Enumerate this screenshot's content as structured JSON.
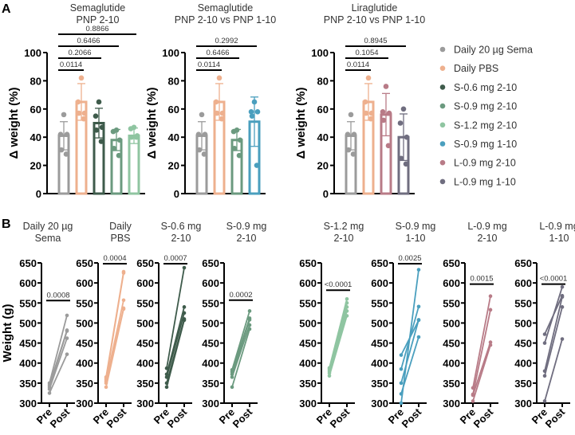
{
  "panel_labels": [
    "A",
    "B"
  ],
  "colors": {
    "Daily 20 µg Sema": "#9b9b9b",
    "Daily PBS": "#eeb08e",
    "S-0.6 mg 2-10": "#3e5b4b",
    "S-0.9 mg 2-10": "#6b9a7f",
    "S-1.2 mg 2-10": "#8fc5a1",
    "S-0.9 mg 1-10": "#4a9fbe",
    "L-0.9 mg 2-10": "#b87b87",
    "L-0.9 mg 1-10": "#6f6d7f"
  },
  "legend": [
    "Daily 20 µg Sema",
    "Daily PBS",
    "S-0.6 mg 2-10",
    "S-0.9 mg 2-10",
    "S-1.2 mg 2-10",
    "S-0.9 mg 1-10",
    "L-0.9 mg 2-10",
    "L-0.9 mg 1-10"
  ],
  "chart_data": [
    {
      "type": "bar",
      "panel": "A",
      "title": [
        "Semaglutide",
        "PNP 2-10"
      ],
      "ylabel": "Δ weight (%)",
      "ylim": [
        0,
        100
      ],
      "yticks": [
        0,
        20,
        40,
        60,
        80,
        100
      ],
      "groups": [
        {
          "name": "Daily 20 µg Sema",
          "mean": 41,
          "sd": 10,
          "points": [
            56,
            42,
            42,
            31,
            28
          ]
        },
        {
          "name": "Daily PBS",
          "mean": 65,
          "sd": 13,
          "points": [
            82,
            65,
            57,
            57,
            53
          ]
        },
        {
          "name": "S-0.6 mg 2-10",
          "mean": 50,
          "sd": 10.5,
          "points": [
            65,
            55,
            47,
            45,
            37
          ]
        },
        {
          "name": "S-0.9 mg 2-10",
          "mean": 38,
          "sd": 7.5,
          "points": [
            45,
            44,
            38,
            32,
            27
          ]
        },
        {
          "name": "S-1.2 mg 2-10",
          "mean": 41,
          "sd": 5.5,
          "points": [
            47,
            46,
            41,
            40,
            40
          ]
        }
      ],
      "comparisons": [
        {
          "to": 1,
          "p": "0.0114"
        },
        {
          "to": 2,
          "p": "0.2066"
        },
        {
          "to": 3,
          "p": "0.6466"
        },
        {
          "to": 4,
          "p": "0.8866"
        }
      ]
    },
    {
      "type": "bar",
      "panel": "A",
      "title": [
        "Semaglutide",
        "PNP 2-10 vs PNP 1-10"
      ],
      "ylabel": "Δ weight (%)",
      "ylim": [
        0,
        100
      ],
      "yticks": [
        0,
        20,
        40,
        60,
        80,
        100
      ],
      "groups": [
        {
          "name": "Daily 20 µg Sema",
          "mean": 41,
          "sd": 10,
          "points": [
            56,
            42,
            42,
            31,
            28
          ]
        },
        {
          "name": "Daily PBS",
          "mean": 65,
          "sd": 13,
          "points": [
            82,
            65,
            57,
            57,
            53
          ]
        },
        {
          "name": "S-0.9 mg 2-10",
          "mean": 38,
          "sd": 7.5,
          "points": [
            45,
            44,
            38,
            32,
            27
          ]
        },
        {
          "name": "S-0.9 mg 1-10",
          "mean": 51,
          "sd": 17.5,
          "points": [
            65,
            58,
            58,
            55,
            20
          ]
        }
      ],
      "comparisons": [
        {
          "to": 1,
          "p": "0.0114"
        },
        {
          "to": 2,
          "p": "0.6466"
        },
        {
          "to": 3,
          "p": "0.2992"
        }
      ]
    },
    {
      "type": "bar",
      "panel": "A",
      "title": [
        "Liraglutide",
        "PNP 2-10 vs PNP 1-10"
      ],
      "ylabel": "Δ weight (%)",
      "ylim": [
        0,
        100
      ],
      "yticks": [
        0,
        20,
        40,
        60,
        80,
        100
      ],
      "groups": [
        {
          "name": "Daily 20 µg Sema",
          "mean": 41,
          "sd": 10,
          "points": [
            56,
            42,
            42,
            31,
            28
          ]
        },
        {
          "name": "Daily PBS",
          "mean": 65,
          "sd": 13,
          "points": [
            82,
            65,
            57,
            57,
            53
          ]
        },
        {
          "name": "L-0.9 mg 2-10",
          "mean": 56,
          "sd": 15,
          "points": [
            76,
            58,
            57,
            52,
            34
          ]
        },
        {
          "name": "L-0.9 mg 1-10",
          "mean": 40,
          "sd": 16.5,
          "points": [
            60,
            50,
            40,
            25,
            21
          ]
        }
      ],
      "comparisons": [
        {
          "to": 1,
          "p": "0.0114"
        },
        {
          "to": 2,
          "p": "0.1054"
        },
        {
          "to": 3,
          "p": "0.8945"
        }
      ]
    },
    {
      "type": "line",
      "panel": "B",
      "ylabel": "Weight (g)",
      "ylim": [
        300,
        650
      ],
      "yticks": [
        300,
        350,
        400,
        450,
        500,
        550,
        600,
        650
      ],
      "xticks": [
        "Pre",
        "Post"
      ],
      "subplots": [
        {
          "title": [
            "Daily 20 µg",
            "Sema"
          ],
          "group": "Daily 20 µg Sema",
          "p": "0.0008",
          "p_level": 556,
          "pairs": [
            [
              350,
              519
            ],
            [
              345,
              482
            ],
            [
              340,
              480
            ],
            [
              335,
              462
            ],
            [
              325,
              422
            ]
          ]
        },
        {
          "title": [
            "Daily",
            "PBS"
          ],
          "group": "Daily PBS",
          "p": "0.0004",
          "p_level": 648,
          "pairs": [
            [
              365,
              628
            ],
            [
              360,
              625
            ],
            [
              355,
              557
            ],
            [
              350,
              537
            ],
            [
              340,
              535
            ]
          ]
        },
        {
          "title": [
            "S-0.6 mg",
            "2-10"
          ],
          "group": "S-0.6 mg 2-10",
          "p": "0.0007",
          "p_level": 648,
          "pairs": [
            [
              387,
              638
            ],
            [
              372,
              540
            ],
            [
              365,
              525
            ],
            [
              350,
              510
            ],
            [
              340,
              507
            ]
          ]
        },
        {
          "title": [
            "S-0.9 mg",
            "2-10"
          ],
          "group": "S-0.9 mg 2-10",
          "p": "0.0002",
          "p_level": 557,
          "pairs": [
            [
              383,
              530
            ],
            [
              378,
              512
            ],
            [
              372,
              508
            ],
            [
              365,
              495
            ],
            [
              340,
              485
            ]
          ]
        },
        {
          "title": [
            "S-1.2 mg",
            "2-10"
          ],
          "group": "S-1.2 mg 2-10",
          "p": "<0.0001",
          "p_level": 582,
          "pairs": [
            [
              388,
              560
            ],
            [
              385,
              550
            ],
            [
              380,
              540
            ],
            [
              375,
              530
            ],
            [
              368,
              518
            ]
          ]
        },
        {
          "title": [
            "S-0.9 mg",
            "1-10"
          ],
          "group": "S-0.9 mg 1-10",
          "p": "0.0025",
          "p_level": 648,
          "pairs": [
            [
              420,
              507
            ],
            [
              385,
              541
            ],
            [
              350,
              508
            ],
            [
              323,
              465
            ],
            [
              300,
              633
            ]
          ]
        },
        {
          "title": [
            "L-0.9 mg",
            "2-10"
          ],
          "group": "L-0.9 mg 2-10",
          "p": "0.0015",
          "p_level": 597,
          "pairs": [
            [
              338,
              567
            ],
            [
              322,
              533
            ],
            [
              320,
              452
            ],
            [
              305,
              445
            ]
          ]
        },
        {
          "title": [
            "L-0.9 mg",
            "1-10"
          ],
          "group": "L-0.9 mg 1-10",
          "p": "<0.0001",
          "p_level": 597,
          "pairs": [
            [
              472,
              568
            ],
            [
              450,
              590
            ],
            [
              380,
              565
            ],
            [
              368,
              540
            ],
            [
              305,
              460
            ]
          ]
        }
      ]
    }
  ]
}
